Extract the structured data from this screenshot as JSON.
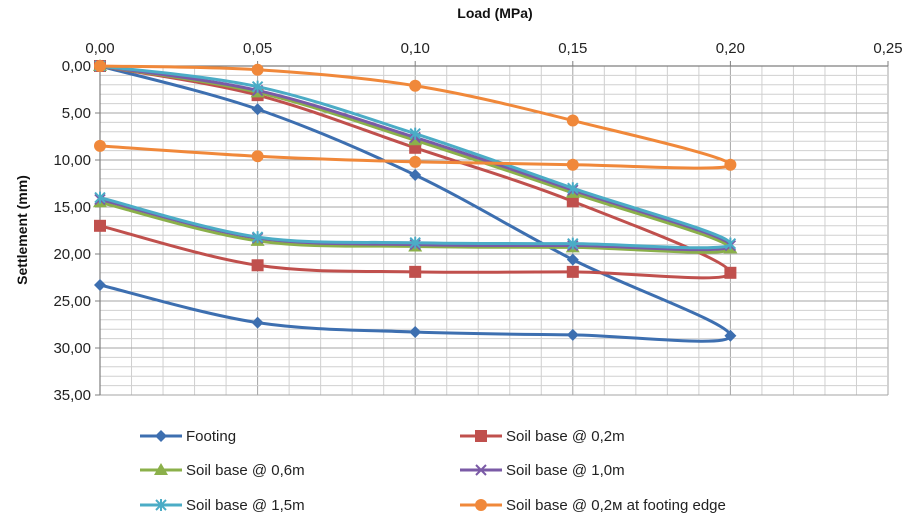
{
  "chart_data": {
    "type": "line",
    "xlabel": "Load (MPa)",
    "ylabel": "Settlement (mm)",
    "xlim": [
      0,
      0.25
    ],
    "ylim": [
      0,
      35
    ],
    "y_inverted": true,
    "x_axis_position": "top",
    "grid": true,
    "legend_position": "bottom",
    "x_ticks": [
      "0,00",
      "0,05",
      "0,10",
      "0,15",
      "0,20",
      "0,25"
    ],
    "y_ticks": [
      "0,00",
      "5,00",
      "10,00",
      "15,00",
      "20,00",
      "25,00",
      "30,00",
      "35,00"
    ],
    "series": [
      {
        "name": "Footing",
        "color": "#3d6fb0",
        "marker": "diamond",
        "x": [
          0,
          0.05,
          0.1,
          0.15,
          0.2,
          0.15,
          0.1,
          0.05,
          0
        ],
        "y": [
          0,
          4.6,
          11.6,
          20.6,
          28.7,
          28.6,
          28.3,
          27.3,
          23.3
        ]
      },
      {
        "name": "Soil base @ 0,2m",
        "color": "#c0504d",
        "marker": "square",
        "x": [
          0,
          0.05,
          0.1,
          0.15,
          0.2,
          0.15,
          0.1,
          0.05,
          0
        ],
        "y": [
          0,
          3.1,
          8.7,
          14.4,
          22.0,
          21.9,
          21.9,
          21.2,
          17.0
        ]
      },
      {
        "name": "Soil base @ 0,6m",
        "color": "#8bb04a",
        "marker": "triangle",
        "x": [
          0,
          0.05,
          0.1,
          0.15,
          0.2,
          0.15,
          0.1,
          0.05,
          0
        ],
        "y": [
          0,
          2.8,
          7.9,
          13.5,
          19.4,
          19.3,
          19.2,
          18.6,
          14.5
        ]
      },
      {
        "name": "Soil base @ 1,0m",
        "color": "#7a5aa6",
        "marker": "x",
        "x": [
          0,
          0.05,
          0.1,
          0.15,
          0.2,
          0.15,
          0.1,
          0.05,
          0
        ],
        "y": [
          0,
          2.6,
          7.6,
          13.2,
          19.1,
          19.1,
          19.0,
          18.3,
          14.2
        ]
      },
      {
        "name": "Soil base @ 1,5m",
        "color": "#4bacc6",
        "marker": "star",
        "x": [
          0,
          0.05,
          0.1,
          0.15,
          0.2,
          0.15,
          0.1,
          0.05,
          0
        ],
        "y": [
          0,
          2.2,
          7.2,
          13.0,
          18.9,
          18.9,
          18.8,
          18.2,
          14.0
        ]
      },
      {
        "name": "Soil base @ 0,2м at footing edge",
        "color": "#f0883a",
        "marker": "circle",
        "x": [
          0,
          0.05,
          0.1,
          0.15,
          0.2,
          0.15,
          0.1,
          0.05,
          0
        ],
        "y": [
          0,
          0.4,
          2.1,
          5.8,
          10.5,
          10.5,
          10.2,
          9.6,
          8.5
        ]
      }
    ]
  }
}
